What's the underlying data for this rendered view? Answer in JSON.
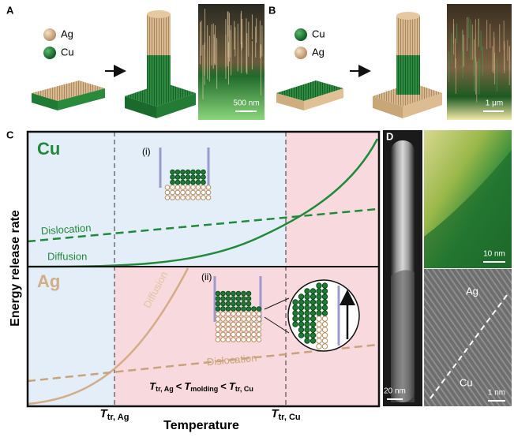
{
  "panels": {
    "a": {
      "label": "A",
      "legend": [
        "Ag",
        "Cu"
      ],
      "scale_bar": "500 nm"
    },
    "b": {
      "label": "B",
      "legend": [
        "Cu",
        "Ag"
      ],
      "scale_bar": "1 μm"
    },
    "c": {
      "label": "C",
      "top_element": "Cu",
      "bottom_element": "Ag",
      "insets": [
        "(i)",
        "(ii)"
      ],
      "curves": {
        "cu_dislocation": "Dislocation",
        "cu_diffusion": "Diffusion",
        "ag_diffusion": "Diffusion",
        "ag_dislocation": "Dislocation"
      },
      "y_axis_label": "Energy release rate",
      "x_axis_label": "Temperature",
      "markers": [
        {
          "symbol": "T",
          "subscript": "tr, Ag"
        },
        {
          "symbol": "T",
          "subscript": "tr, Cu"
        }
      ],
      "condition": {
        "terms": [
          {
            "symbol": "T",
            "subscript": "tr, Ag"
          },
          {
            "symbol": "T",
            "subscript": "molding"
          },
          {
            "symbol": "T",
            "subscript": "tr, Cu"
          }
        ],
        "operator": "<"
      }
    },
    "d": {
      "label": "D",
      "stem_scale_bar": "20 nm",
      "eds_scale_bar": "10 nm",
      "upper_phase": "Ag",
      "lower_phase": "Cu",
      "hrtem_scale_bar": "1 nm"
    }
  }
}
